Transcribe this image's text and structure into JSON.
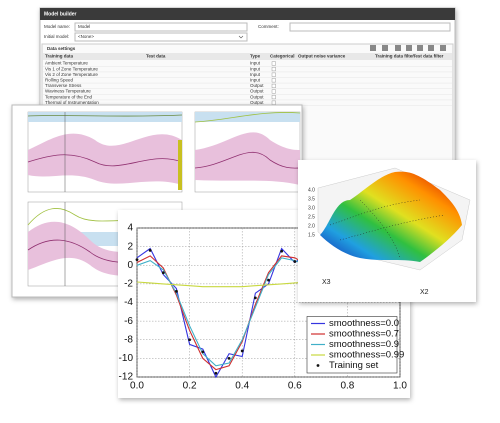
{
  "window": {
    "title": "Model builder",
    "model_name_label": "Model name:",
    "model_name": "Model",
    "comment_label": "Comment:",
    "initial_model_label": "Initial model:",
    "initial_model": "<None>",
    "section": "Data settings",
    "columns": [
      "Training data",
      "Test data",
      "Type",
      "Categorical",
      "Output noise variance",
      "Training data filter",
      "Test data filter"
    ],
    "rows": [
      [
        "Ambient Temperature",
        "Input"
      ],
      [
        "Vis 1 of Zone Temperature",
        "Input"
      ],
      [
        "Vis 2 of Zone Temperature",
        "Input"
      ],
      [
        "Rolling Speed",
        "Input"
      ],
      [
        "Transverse Stress",
        "Output"
      ],
      [
        "Waviness Temperature",
        "Output"
      ],
      [
        "Temperature of the End",
        "Output"
      ],
      [
        "Thermal of Instrumentation",
        "Output"
      ]
    ]
  },
  "surface_plot": {
    "x_label": "X3",
    "y_label": "X2",
    "z_ticks": [
      "4.0",
      "3.5",
      "3.0",
      "2.5",
      "2.0",
      "1.5"
    ]
  },
  "chart_data": {
    "type": "line",
    "x": [
      0,
      0.05,
      0.1,
      0.15,
      0.2,
      0.25,
      0.3,
      0.35,
      0.4,
      0.45,
      0.5,
      0.55,
      0.6,
      0.65
    ],
    "series": [
      {
        "name": "smoothness=0.0",
        "color": "#3535e0",
        "values": [
          0.8,
          1.8,
          -1,
          -2.5,
          -8.5,
          -9,
          -12,
          -9.5,
          -9.8,
          -3,
          -2,
          1.8,
          0.3,
          1.2
        ]
      },
      {
        "name": "smoothness=0.7",
        "color": "#d03030",
        "values": [
          0.3,
          1,
          -0.3,
          -3.2,
          -7,
          -10,
          -11.2,
          -10.8,
          -8.2,
          -4.2,
          -0.8,
          1,
          0.8,
          0
        ]
      },
      {
        "name": "smoothness=0.9",
        "color": "#40b0c8",
        "values": [
          0,
          0.5,
          -0.5,
          -3,
          -6.5,
          -9.5,
          -10.8,
          -10.5,
          -8,
          -4.5,
          -1,
          0.8,
          0.5,
          0
        ]
      },
      {
        "name": "smoothness=0.99",
        "color": "#c8d840",
        "values": [
          -1.8,
          -1.9,
          -2,
          -2.1,
          -2.2,
          -2.3,
          -2.3,
          -2.3,
          -2.3,
          -2.2,
          -2.1,
          -2,
          -1.9,
          -1.8
        ]
      }
    ],
    "training_set": {
      "name": "Training set",
      "color": "#111111",
      "values": [
        0.6,
        1.6,
        -0.8,
        -2.8,
        -8,
        -9.3,
        -11.6,
        -10,
        -9.2,
        -3.5,
        -1.6,
        1.5,
        0.4,
        0.9
      ]
    },
    "xlim": [
      0,
      1
    ],
    "xticks": [
      {
        "value": 0,
        "label": "0.0"
      },
      0.2,
      0.4,
      0.6,
      0.8,
      {
        "value": 1,
        "label": "1.0"
      }
    ],
    "ylim": [
      -12,
      4
    ],
    "yticks": [
      4,
      2,
      0,
      -2,
      -4,
      -6,
      -8,
      -10,
      -12
    ],
    "grid": true,
    "legend": "lower right"
  }
}
